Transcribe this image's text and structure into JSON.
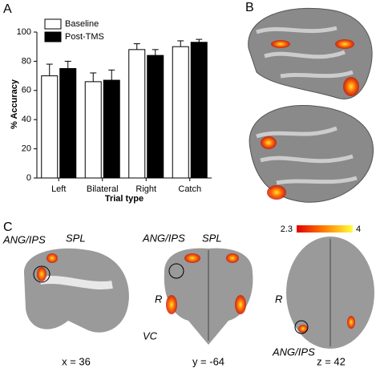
{
  "chart_data": {
    "type": "bar",
    "xlabel": "Trial type",
    "ylabel": "% Accuracy",
    "categories": [
      "Left",
      "Bilateral",
      "Right",
      "Catch"
    ],
    "series": [
      {
        "name": "Baseline",
        "color": "#ffffff",
        "values": [
          70,
          66,
          88,
          90
        ],
        "errors": [
          8,
          6,
          4,
          4
        ]
      },
      {
        "name": "Post-TMS",
        "color": "#000000",
        "values": [
          75,
          67,
          84,
          93
        ],
        "errors": [
          5,
          7,
          4,
          2
        ]
      }
    ],
    "ylim": [
      0,
      100
    ],
    "yticks": [
      0,
      20,
      40,
      60,
      80,
      100
    ],
    "legend": "upper left"
  },
  "panels": [
    "A",
    "B",
    "C"
  ],
  "colorbar": {
    "min": 2.3,
    "max": 4
  },
  "annotations": {
    "sagittal": [
      "ANG/IPS",
      "SPL"
    ],
    "coronal": [
      "ANG/IPS",
      "SPL",
      "R",
      "VC"
    ],
    "axial": [
      "R",
      "ANG/IPS"
    ]
  },
  "slices": [
    "x = 36",
    "y = -64",
    "z = 42"
  ]
}
